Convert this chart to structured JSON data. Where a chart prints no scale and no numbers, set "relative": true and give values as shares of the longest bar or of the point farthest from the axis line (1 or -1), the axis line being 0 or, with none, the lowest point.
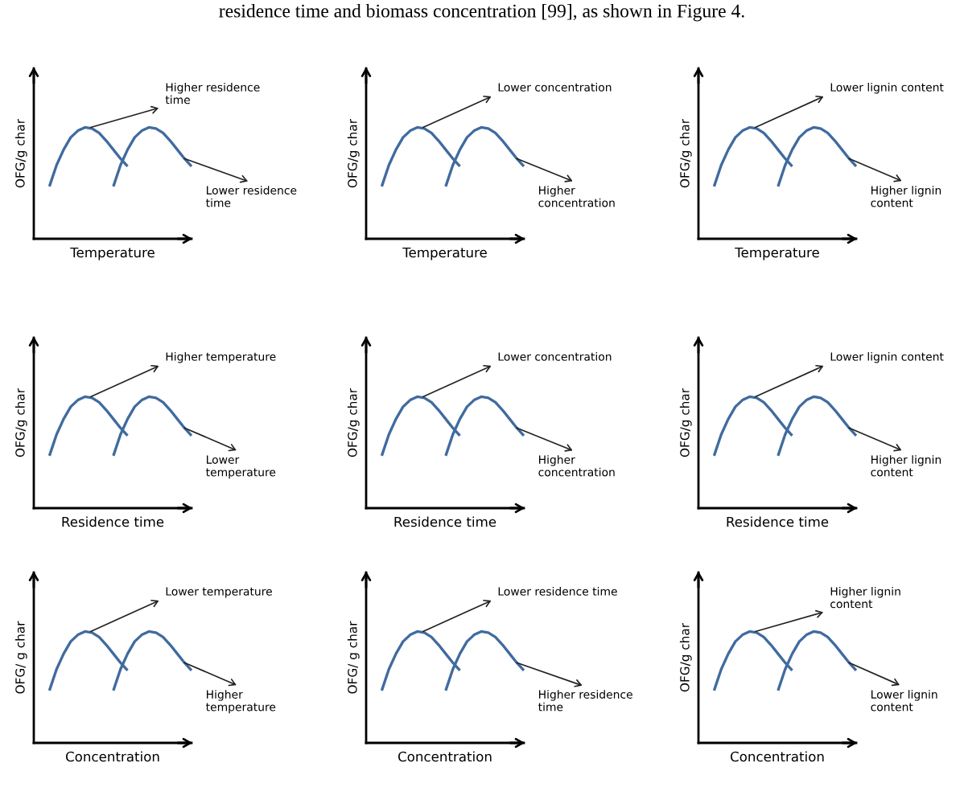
{
  "chart_data": [
    {
      "type": "line",
      "relative": true,
      "xlabel": "Temperature",
      "ylabel": "OFG/g char",
      "categories": [
        null,
        null,
        null,
        null,
        null,
        null,
        null,
        null,
        null,
        null,
        null,
        null,
        null,
        null,
        null,
        null,
        null,
        null,
        null,
        null,
        null
      ],
      "series": [
        {
          "color": "#406b9f",
          "values": [
            0.47,
            0.66,
            0.8,
            0.91,
            0.97,
            1.0,
            0.99,
            0.95,
            0.88,
            0.8,
            0.72,
            0.65,
            null,
            null,
            null,
            null,
            null,
            null,
            null,
            null,
            null
          ]
        },
        {
          "color": "#406b9f",
          "values": [
            null,
            null,
            null,
            null,
            null,
            null,
            null,
            null,
            null,
            0.47,
            0.66,
            0.8,
            0.91,
            0.97,
            1.0,
            0.99,
            0.95,
            0.88,
            0.8,
            0.72,
            0.65
          ]
        }
      ],
      "annotations": [
        "Higher residence\ntime",
        "Lower residence\ntime",
        "residence time and biomass concentration [99], as shown in Figure 4."
      ]
    },
    {
      "type": "line",
      "relative": true,
      "xlabel": "Temperature",
      "ylabel": "OFG/g char",
      "categories": [
        null,
        null,
        null,
        null,
        null,
        null,
        null,
        null,
        null,
        null,
        null,
        null,
        null,
        null,
        null,
        null,
        null,
        null,
        null,
        null,
        null
      ],
      "series": [
        {
          "color": "#406b9f",
          "values": [
            0.47,
            0.66,
            0.8,
            0.91,
            0.97,
            1.0,
            0.99,
            0.95,
            0.88,
            0.8,
            0.72,
            0.65,
            null,
            null,
            null,
            null,
            null,
            null,
            null,
            null,
            null
          ]
        },
        {
          "color": "#406b9f",
          "values": [
            null,
            null,
            null,
            null,
            null,
            null,
            null,
            null,
            null,
            0.47,
            0.66,
            0.8,
            0.91,
            0.97,
            1.0,
            0.99,
            0.95,
            0.88,
            0.8,
            0.72,
            0.65
          ]
        }
      ],
      "annotations": [
        "Lower concentration",
        "Higher\nconcentration"
      ]
    },
    {
      "type": "line",
      "relative": true,
      "xlabel": "Temperature",
      "ylabel": "OFG/g char",
      "categories": [
        null,
        null,
        null,
        null,
        null,
        null,
        null,
        null,
        null,
        null,
        null,
        null,
        null,
        null,
        null,
        null,
        null,
        null,
        null,
        null,
        null
      ],
      "series": [
        {
          "color": "#406b9f",
          "values": [
            0.47,
            0.66,
            0.8,
            0.91,
            0.97,
            1.0,
            0.99,
            0.95,
            0.88,
            0.8,
            0.72,
            0.65,
            null,
            null,
            null,
            null,
            null,
            null,
            null,
            null,
            null
          ]
        },
        {
          "color": "#406b9f",
          "values": [
            null,
            null,
            null,
            null,
            null,
            null,
            null,
            null,
            null,
            0.47,
            0.66,
            0.8,
            0.91,
            0.97,
            1.0,
            0.99,
            0.95,
            0.88,
            0.8,
            0.72,
            0.65
          ]
        }
      ],
      "annotations": [
        "Lower lignin content",
        "Higher lignin\ncontent"
      ]
    },
    {
      "type": "line",
      "relative": true,
      "xlabel": "Residence time",
      "ylabel": "OFG/g char",
      "categories": [
        null,
        null,
        null,
        null,
        null,
        null,
        null,
        null,
        null,
        null,
        null,
        null,
        null,
        null,
        null,
        null,
        null,
        null,
        null,
        null,
        null
      ],
      "series": [
        {
          "color": "#406b9f",
          "values": [
            0.47,
            0.66,
            0.8,
            0.91,
            0.97,
            1.0,
            0.99,
            0.95,
            0.88,
            0.8,
            0.72,
            0.65,
            null,
            null,
            null,
            null,
            null,
            null,
            null,
            null,
            null
          ]
        },
        {
          "color": "#406b9f",
          "values": [
            null,
            null,
            null,
            null,
            null,
            null,
            null,
            null,
            null,
            0.47,
            0.66,
            0.8,
            0.91,
            0.97,
            1.0,
            0.99,
            0.95,
            0.88,
            0.8,
            0.72,
            0.65
          ]
        }
      ],
      "annotations": [
        "Higher temperature",
        "Lower\ntemperature"
      ]
    },
    {
      "type": "line",
      "relative": true,
      "xlabel": "Residence time",
      "ylabel": "OFG/g char",
      "categories": [
        null,
        null,
        null,
        null,
        null,
        null,
        null,
        null,
        null,
        null,
        null,
        null,
        null,
        null,
        null,
        null,
        null,
        null,
        null,
        null,
        null
      ],
      "series": [
        {
          "color": "#406b9f",
          "values": [
            0.47,
            0.66,
            0.8,
            0.91,
            0.97,
            1.0,
            0.99,
            0.95,
            0.88,
            0.8,
            0.72,
            0.65,
            null,
            null,
            null,
            null,
            null,
            null,
            null,
            null,
            null
          ]
        },
        {
          "color": "#406b9f",
          "values": [
            null,
            null,
            null,
            null,
            null,
            null,
            null,
            null,
            null,
            0.47,
            0.66,
            0.8,
            0.91,
            0.97,
            1.0,
            0.99,
            0.95,
            0.88,
            0.8,
            0.72,
            0.65
          ]
        }
      ],
      "annotations": [
        "Lower concentration",
        "Higher\nconcentration"
      ]
    },
    {
      "type": "line",
      "relative": true,
      "xlabel": "Residence time",
      "ylabel": "OFG/g char",
      "categories": [
        null,
        null,
        null,
        null,
        null,
        null,
        null,
        null,
        null,
        null,
        null,
        null,
        null,
        null,
        null,
        null,
        null,
        null,
        null,
        null,
        null
      ],
      "series": [
        {
          "color": "#406b9f",
          "values": [
            0.47,
            0.66,
            0.8,
            0.91,
            0.97,
            1.0,
            0.99,
            0.95,
            0.88,
            0.8,
            0.72,
            0.65,
            null,
            null,
            null,
            null,
            null,
            null,
            null,
            null,
            null
          ]
        },
        {
          "color": "#406b9f",
          "values": [
            null,
            null,
            null,
            null,
            null,
            null,
            null,
            null,
            null,
            0.47,
            0.66,
            0.8,
            0.91,
            0.97,
            1.0,
            0.99,
            0.95,
            0.88,
            0.8,
            0.72,
            0.65
          ]
        }
      ],
      "annotations": [
        "Lower lignin content",
        "Higher lignin\ncontent"
      ]
    },
    {
      "type": "line",
      "relative": true,
      "xlabel": "Concentration",
      "ylabel": "OFG/ g char",
      "categories": [
        null,
        null,
        null,
        null,
        null,
        null,
        null,
        null,
        null,
        null,
        null,
        null,
        null,
        null,
        null,
        null,
        null,
        null,
        null,
        null,
        null
      ],
      "series": [
        {
          "color": "#406b9f",
          "values": [
            0.47,
            0.66,
            0.8,
            0.91,
            0.97,
            1.0,
            0.99,
            0.95,
            0.88,
            0.8,
            0.72,
            0.65,
            null,
            null,
            null,
            null,
            null,
            null,
            null,
            null,
            null
          ]
        },
        {
          "color": "#406b9f",
          "values": [
            null,
            null,
            null,
            null,
            null,
            null,
            null,
            null,
            null,
            0.47,
            0.66,
            0.8,
            0.91,
            0.97,
            1.0,
            0.99,
            0.95,
            0.88,
            0.8,
            0.72,
            0.65
          ]
        }
      ],
      "annotations": [
        "Lower temperature",
        "Higher\ntemperature"
      ]
    },
    {
      "type": "line",
      "relative": true,
      "xlabel": "Concentration",
      "ylabel": "OFG/ g char",
      "categories": [
        null,
        null,
        null,
        null,
        null,
        null,
        null,
        null,
        null,
        null,
        null,
        null,
        null,
        null,
        null,
        null,
        null,
        null,
        null,
        null,
        null
      ],
      "series": [
        {
          "color": "#406b9f",
          "values": [
            0.47,
            0.66,
            0.8,
            0.91,
            0.97,
            1.0,
            0.99,
            0.95,
            0.88,
            0.8,
            0.72,
            0.65,
            null,
            null,
            null,
            null,
            null,
            null,
            null,
            null,
            null
          ]
        },
        {
          "color": "#406b9f",
          "values": [
            null,
            null,
            null,
            null,
            null,
            null,
            null,
            null,
            null,
            0.47,
            0.66,
            0.8,
            0.91,
            0.97,
            1.0,
            0.99,
            0.95,
            0.88,
            0.8,
            0.72,
            0.65
          ]
        }
      ],
      "annotations": [
        "Lower residence time",
        "Higher residence\ntime"
      ]
    },
    {
      "type": "line",
      "relative": true,
      "xlabel": "Concentration",
      "ylabel": "OFG/g char",
      "categories": [
        null,
        null,
        null,
        null,
        null,
        null,
        null,
        null,
        null,
        null,
        null,
        null,
        null,
        null,
        null,
        null,
        null,
        null,
        null,
        null,
        null
      ],
      "series": [
        {
          "color": "#406b9f",
          "values": [
            0.47,
            0.66,
            0.8,
            0.91,
            0.97,
            1.0,
            0.99,
            0.95,
            0.88,
            0.8,
            0.72,
            0.65,
            null,
            null,
            null,
            null,
            null,
            null,
            null,
            null,
            null
          ]
        },
        {
          "color": "#406b9f",
          "values": [
            null,
            null,
            null,
            null,
            null,
            null,
            null,
            null,
            null,
            0.47,
            0.66,
            0.8,
            0.91,
            0.97,
            1.0,
            0.99,
            0.95,
            0.88,
            0.8,
            0.72,
            0.65
          ]
        }
      ],
      "annotations": [
        "Higher lignin\ncontent",
        "Lower lignin\ncontent"
      ]
    }
  ]
}
